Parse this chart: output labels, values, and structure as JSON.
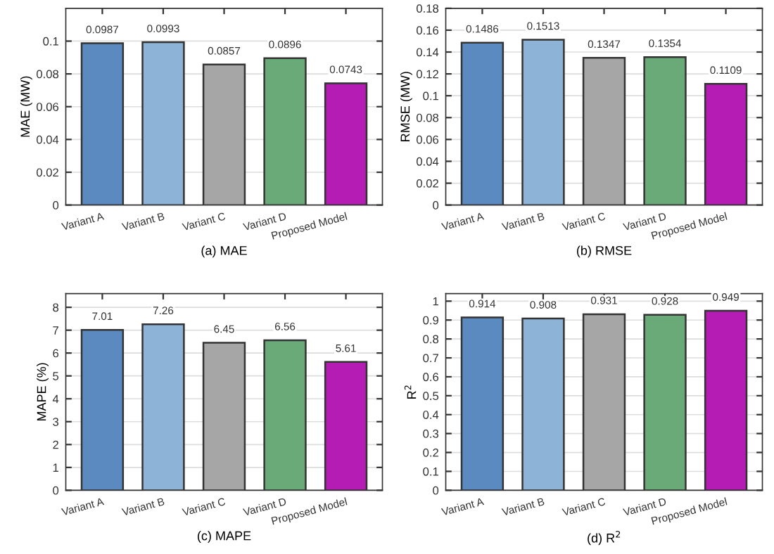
{
  "chart_data": [
    {
      "type": "bar",
      "xlabel": "(a) MAE",
      "ylabel": "MAE (MW)",
      "categories": [
        "Variant A",
        "Variant B",
        "Variant C",
        "Variant D",
        "Proposed Model"
      ],
      "values": [
        0.0987,
        0.0993,
        0.0857,
        0.0896,
        0.0743
      ],
      "colors": [
        "#5a8ac0",
        "#8db3d6",
        "#a6a6a6",
        "#6aa978",
        "#b41cb4"
      ],
      "ylim": [
        0,
        0.12
      ],
      "yticks": [
        0,
        0.02,
        0.04,
        0.06,
        0.08,
        0.1
      ],
      "grid": "y",
      "data_labels": true
    },
    {
      "type": "bar",
      "xlabel": "(b) RMSE",
      "ylabel": "RMSE (MW)",
      "categories": [
        "Variant A",
        "Variant B",
        "Variant C",
        "Variant D",
        "Proposed Model"
      ],
      "values": [
        0.1486,
        0.1513,
        0.1347,
        0.1354,
        0.1109
      ],
      "colors": [
        "#5a8ac0",
        "#8db3d6",
        "#a6a6a6",
        "#6aa978",
        "#b41cb4"
      ],
      "ylim": [
        0,
        0.18
      ],
      "yticks": [
        0,
        0.02,
        0.04,
        0.06,
        0.08,
        0.1,
        0.12,
        0.14,
        0.16,
        0.18
      ],
      "grid": "y",
      "data_labels": true
    },
    {
      "type": "bar",
      "xlabel": "(c) MAPE",
      "ylabel": "MAPE (%)",
      "categories": [
        "Variant A",
        "Variant B",
        "Variant C",
        "Variant D",
        "Proposed Model"
      ],
      "values": [
        7.01,
        7.26,
        6.45,
        6.56,
        5.61
      ],
      "colors": [
        "#5a8ac0",
        "#8db3d6",
        "#a6a6a6",
        "#6aa978",
        "#b41cb4"
      ],
      "ylim": [
        0,
        8.6
      ],
      "yticks": [
        0,
        1,
        2,
        3,
        4,
        5,
        6,
        7,
        8
      ],
      "grid": "y",
      "data_labels": true
    },
    {
      "type": "bar",
      "xlabel": "(d) R$^{2}$",
      "ylabel": "R$^{2}$",
      "categories": [
        "Variant A",
        "Variant B",
        "Variant C",
        "Variant D",
        "Proposed Model"
      ],
      "values": [
        0.914,
        0.908,
        0.931,
        0.928,
        0.949
      ],
      "colors": [
        "#5a8ac0",
        "#8db3d6",
        "#a6a6a6",
        "#6aa978",
        "#b41cb4"
      ],
      "ylim": [
        0,
        1.04
      ],
      "yticks": [
        0,
        0.1,
        0.2,
        0.3,
        0.4,
        0.5,
        0.6,
        0.7,
        0.8,
        0.9,
        1
      ],
      "grid": "y",
      "data_labels": true
    }
  ]
}
